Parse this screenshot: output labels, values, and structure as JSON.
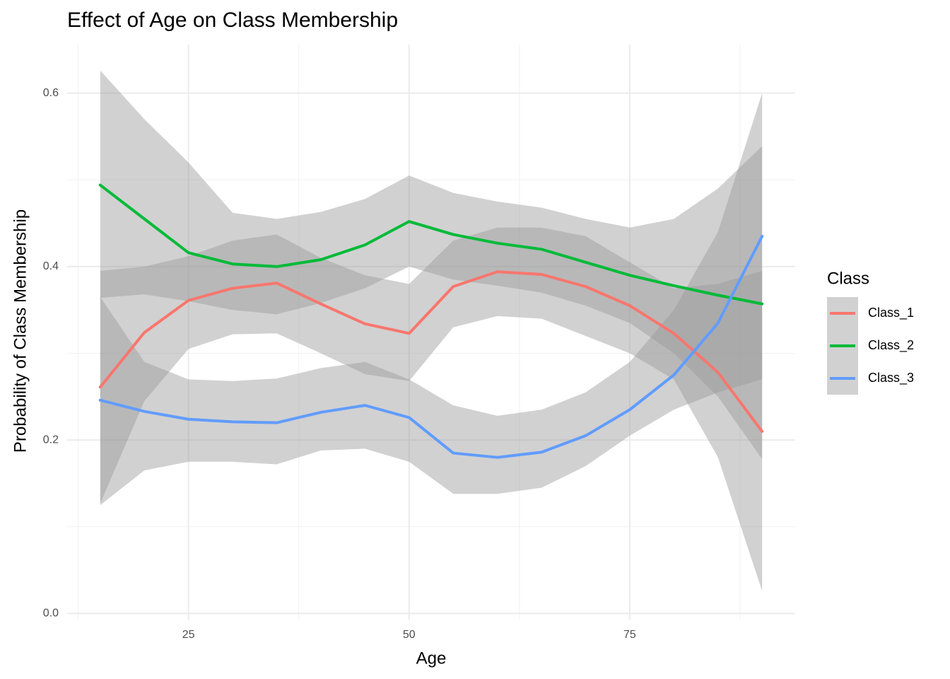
{
  "chart_data": {
    "type": "line",
    "title": "Effect of Age on Class Membership",
    "x_label": "Age",
    "y_label": "Probability of Class Membership",
    "legend_title": "Class",
    "legend_position": "right",
    "grid": true,
    "band_color": "#999999",
    "x": [
      15,
      20,
      25,
      30,
      35,
      40,
      45,
      50,
      55,
      60,
      65,
      70,
      75,
      80,
      85,
      90
    ],
    "series": [
      {
        "name": "Class_1",
        "color": "#f8766d",
        "values": [
          0.261,
          0.324,
          0.361,
          0.375,
          0.381,
          0.357,
          0.334,
          0.323,
          0.377,
          0.394,
          0.391,
          0.377,
          0.355,
          0.323,
          0.278,
          0.21
        ],
        "upper": [
          0.395,
          0.4,
          0.412,
          0.43,
          0.437,
          0.41,
          0.39,
          0.38,
          0.43,
          0.445,
          0.445,
          0.435,
          0.405,
          0.375,
          0.38,
          0.395
        ],
        "lower": [
          0.127,
          0.245,
          0.305,
          0.322,
          0.323,
          0.3,
          0.276,
          0.268,
          0.33,
          0.343,
          0.34,
          0.32,
          0.3,
          0.27,
          0.18,
          0.026
        ]
      },
      {
        "name": "Class_2",
        "color": "#00ba38",
        "values": [
          0.494,
          0.455,
          0.416,
          0.403,
          0.4,
          0.408,
          0.425,
          0.452,
          0.437,
          0.427,
          0.42,
          0.405,
          0.39,
          0.378,
          0.367,
          0.357
        ],
        "upper": [
          0.626,
          0.57,
          0.52,
          0.462,
          0.455,
          0.463,
          0.478,
          0.505,
          0.485,
          0.475,
          0.468,
          0.455,
          0.445,
          0.455,
          0.49,
          0.539
        ],
        "lower": [
          0.364,
          0.368,
          0.36,
          0.35,
          0.345,
          0.358,
          0.375,
          0.4,
          0.385,
          0.378,
          0.37,
          0.355,
          0.335,
          0.3,
          0.25,
          0.178
        ]
      },
      {
        "name": "Class_3",
        "color": "#619cff",
        "values": [
          0.246,
          0.233,
          0.224,
          0.221,
          0.22,
          0.232,
          0.24,
          0.226,
          0.185,
          0.18,
          0.186,
          0.205,
          0.235,
          0.275,
          0.335,
          0.435
        ],
        "upper": [
          0.365,
          0.29,
          0.27,
          0.268,
          0.271,
          0.283,
          0.29,
          0.27,
          0.24,
          0.228,
          0.235,
          0.255,
          0.29,
          0.35,
          0.44,
          0.6
        ],
        "lower": [
          0.125,
          0.165,
          0.175,
          0.175,
          0.172,
          0.188,
          0.19,
          0.175,
          0.138,
          0.138,
          0.145,
          0.17,
          0.205,
          0.235,
          0.255,
          0.27
        ]
      }
    ],
    "xlim": [
      11.25,
      93.75
    ],
    "xticks": [
      25,
      50,
      75
    ],
    "xminor": [
      12.5,
      37.5,
      62.5,
      87.5
    ],
    "ylim": [
      -0.007,
      0.656
    ],
    "yticks": [
      {
        "value": 0,
        "label": "0.0"
      },
      0.2,
      0.4,
      0.6
    ],
    "yminor": [
      0.1,
      0.3,
      0.5
    ]
  }
}
